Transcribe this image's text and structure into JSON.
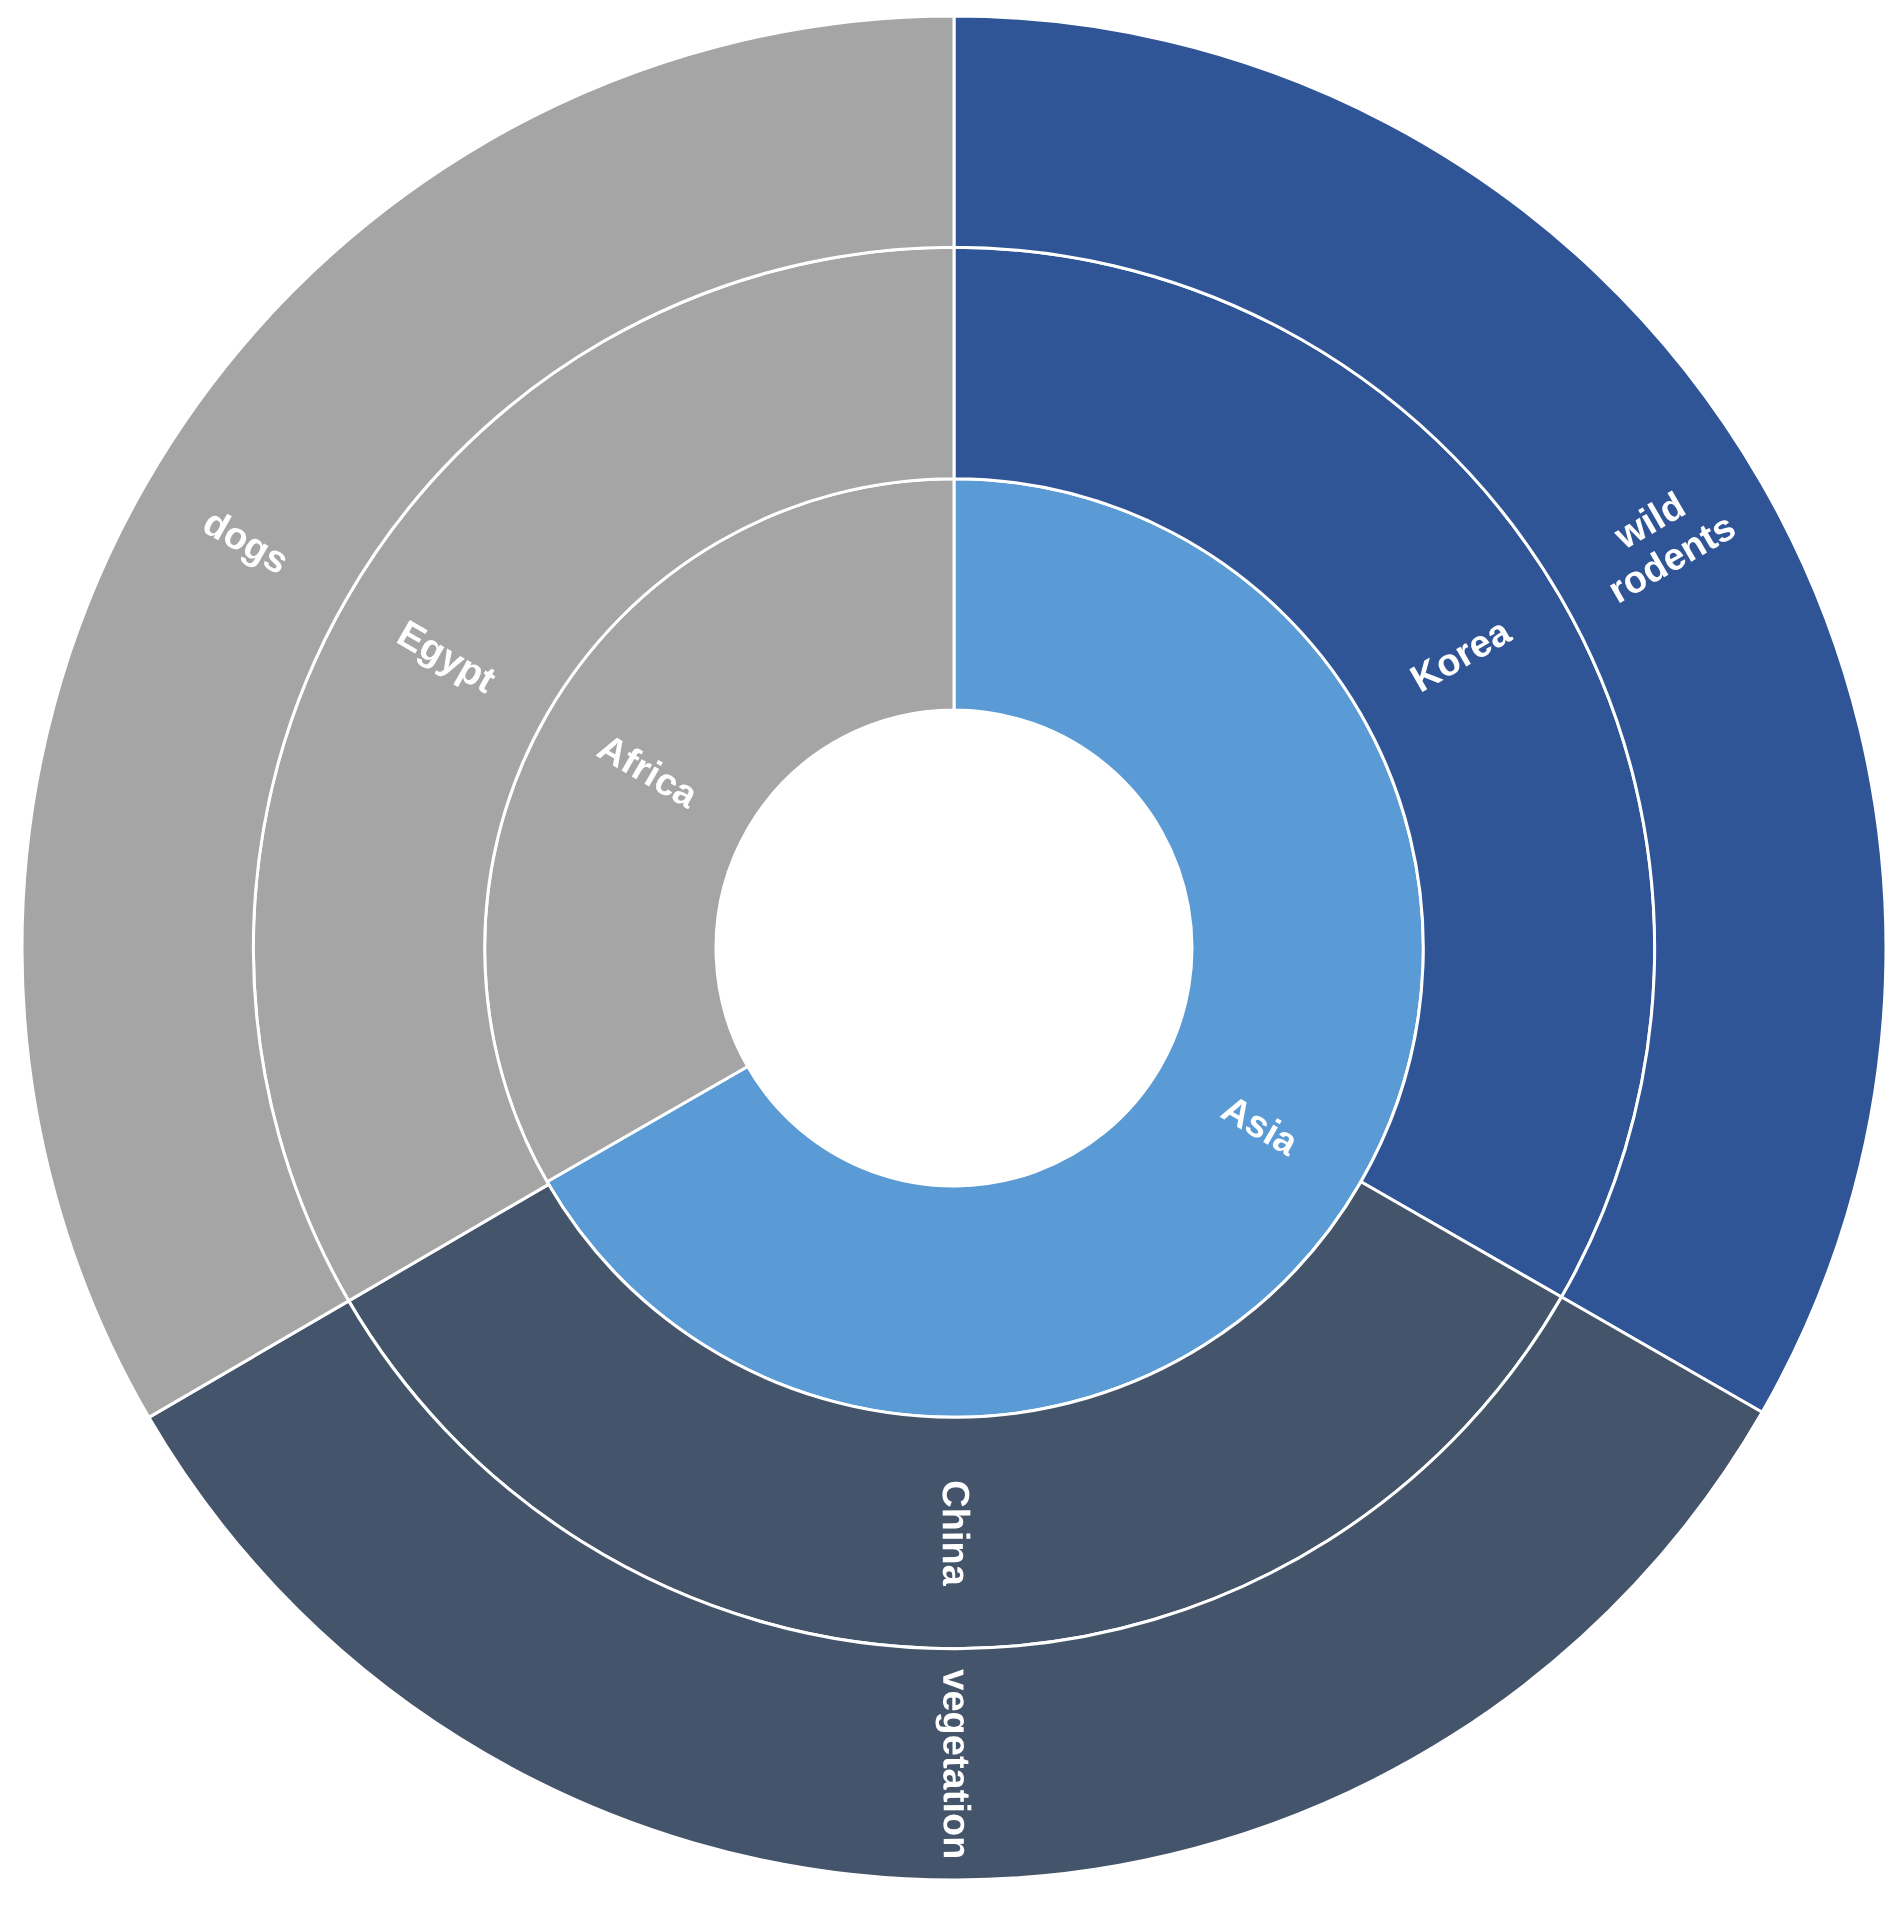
{
  "chart_data": [
    {
      "type": "donut",
      "categories": [
        "Asia",
        "Africa"
      ],
      "values": [
        66.7,
        33.3
      ],
      "colors": [
        "#5b9bd5",
        "#a5a5a5"
      ]
    },
    {
      "type": "donut",
      "categories": [
        "Korea",
        "China",
        "Egypt"
      ],
      "values": [
        33.3,
        33.3,
        33.4
      ],
      "colors": [
        "#2f5597",
        "#44546a",
        "#a5a5a5"
      ]
    },
    {
      "type": "donut",
      "categories": [
        "wild rodents",
        "vegetation",
        "dogs"
      ],
      "values": [
        33.3,
        33.3,
        33.4
      ],
      "colors": [
        "#2f5597",
        "#44546a",
        "#a5a5a5"
      ]
    }
  ]
}
